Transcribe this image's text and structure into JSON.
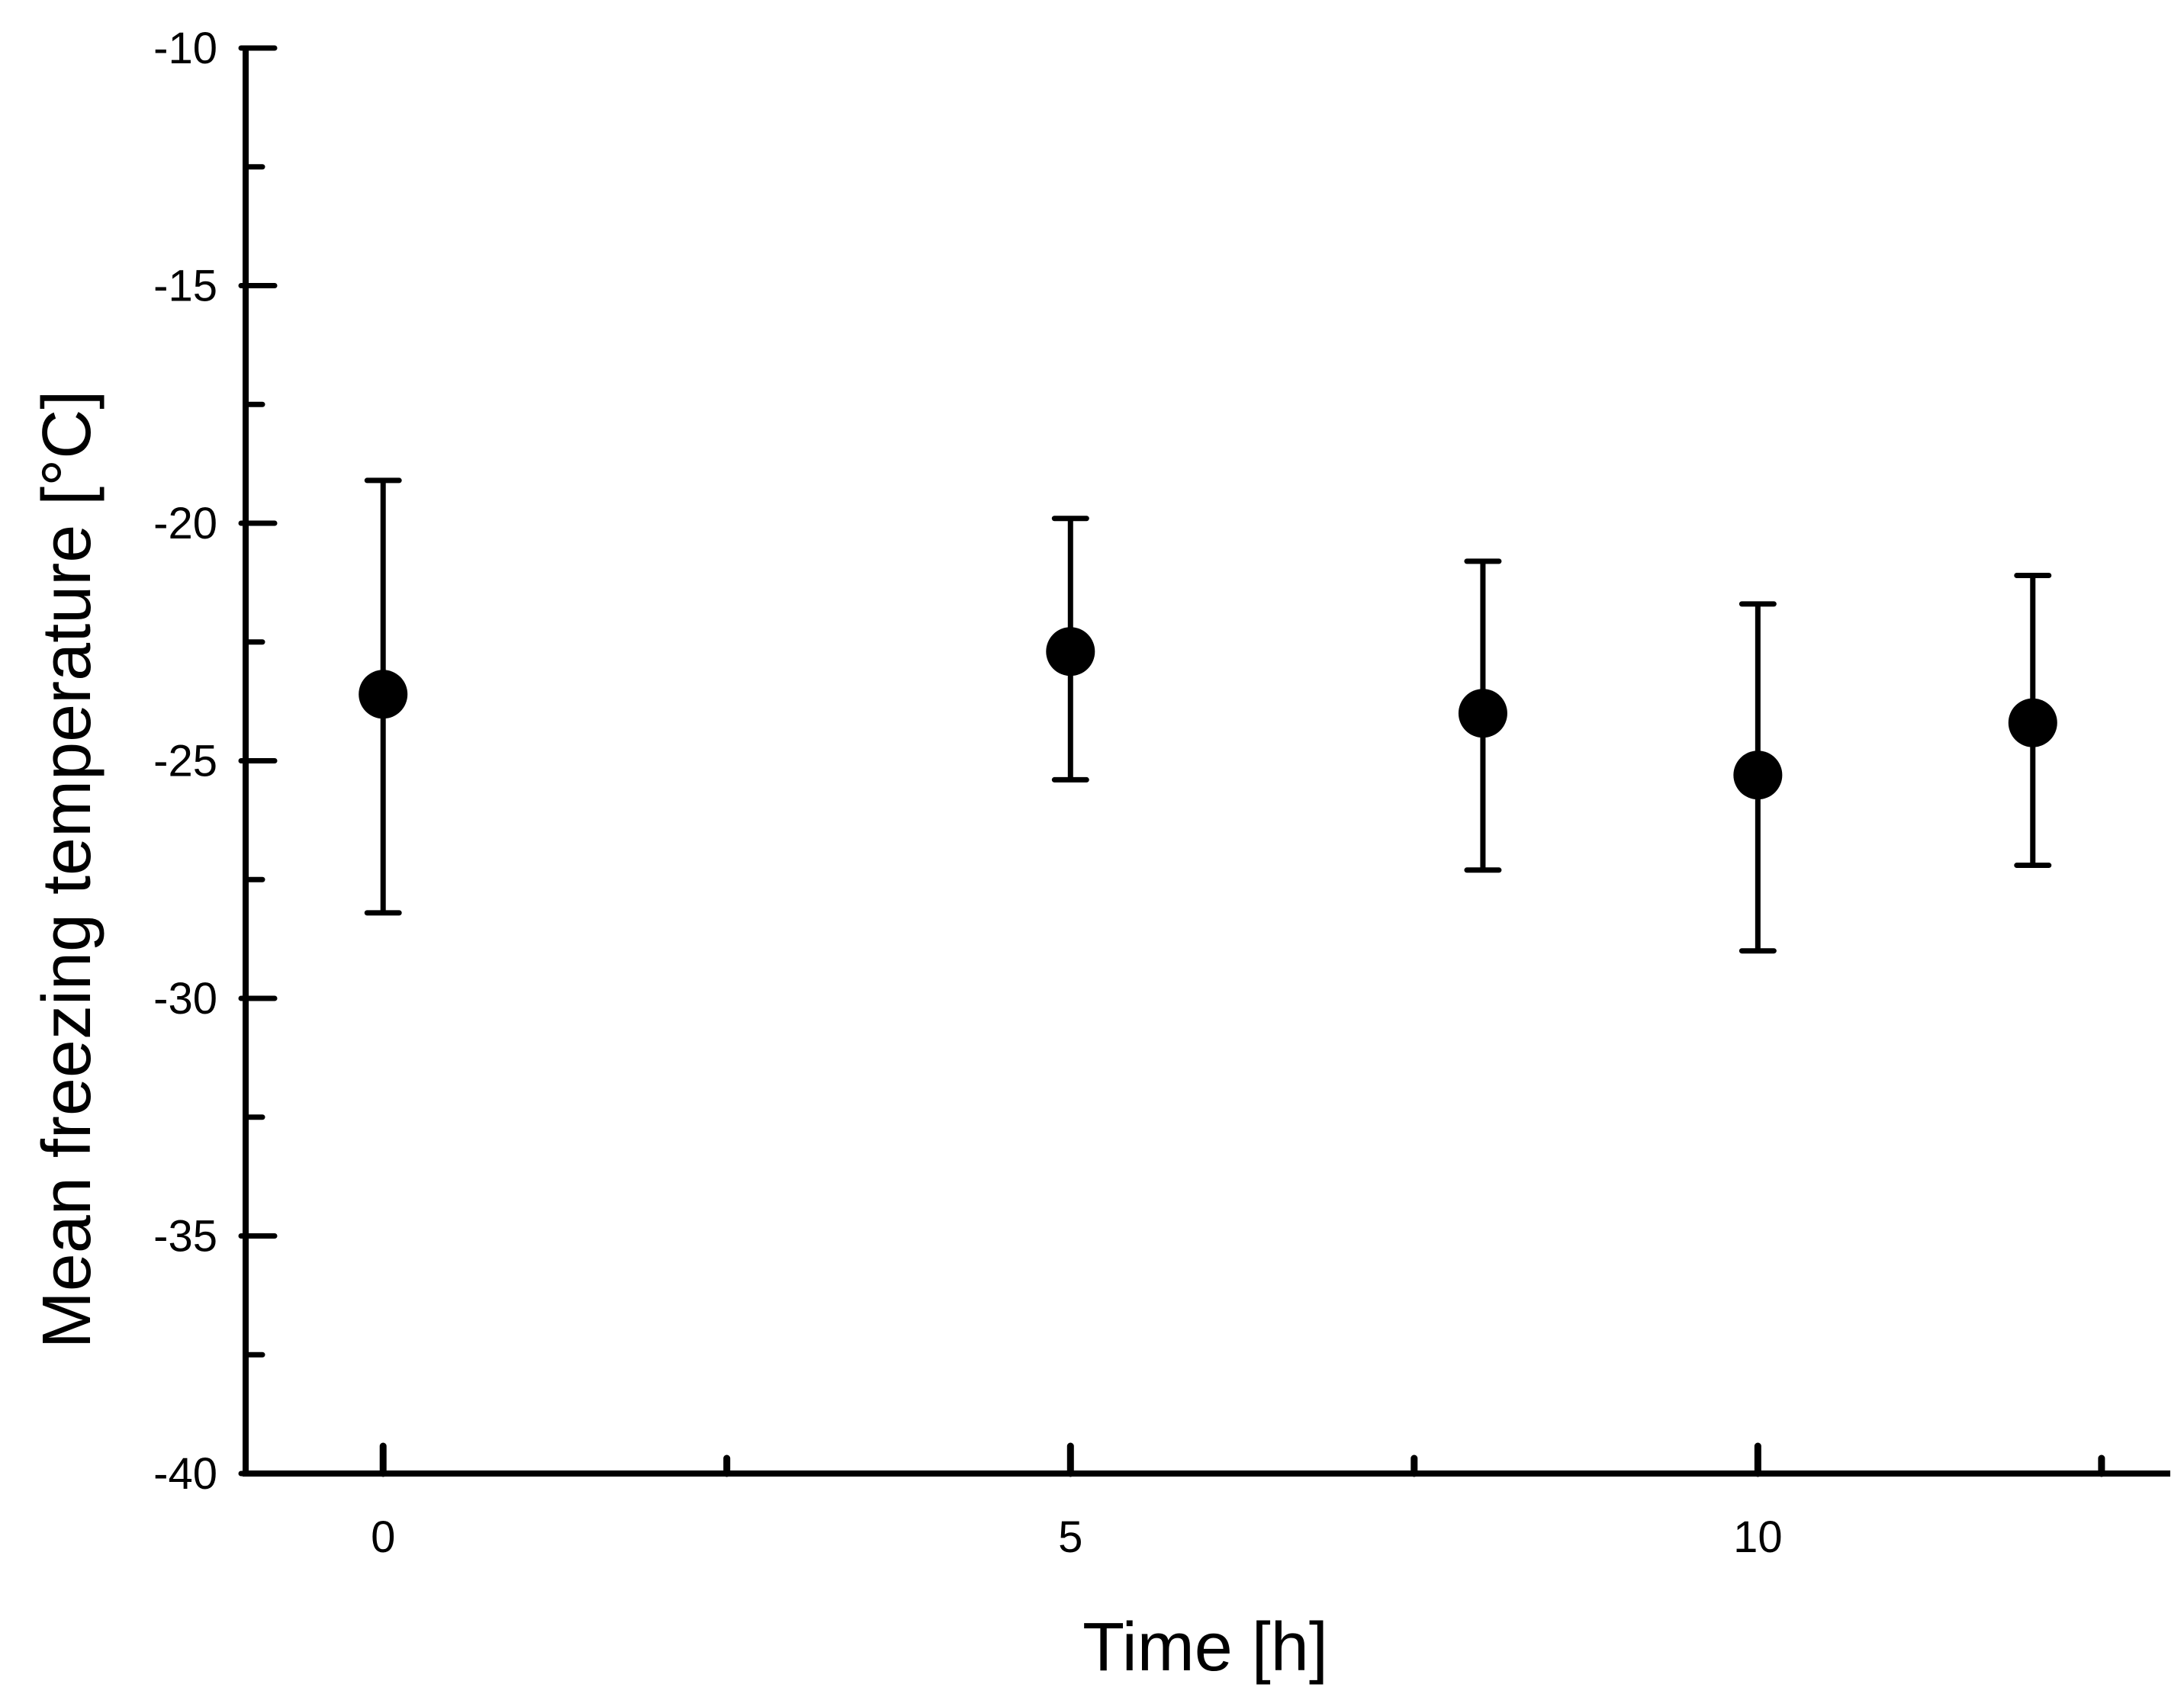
{
  "chart_data": {
    "type": "scatter",
    "title": "",
    "xlabel": "Time [h]",
    "ylabel": "Mean freezing temperature [°C]",
    "xlim": [
      -1,
      13
    ],
    "ylim": [
      -40,
      -10
    ],
    "x_ticks": [
      0,
      5,
      10
    ],
    "x_tick_labels": [
      "0",
      "5",
      "10"
    ],
    "x_minor_ticks": [
      2.5,
      7.5,
      12.5
    ],
    "y_ticks": [
      -10,
      -15,
      -20,
      -25,
      -30,
      -35,
      -40
    ],
    "y_tick_labels": [
      "-10",
      "-15",
      "-20",
      "-25",
      "-30",
      "-35",
      "-40"
    ],
    "y_minor_ticks": [
      -12.5,
      -17.5,
      -22.5,
      -27.5,
      -32.5,
      -37.5
    ],
    "grid": false,
    "legend": "none",
    "colors": {
      "marker": "#000000",
      "axis": "#000000"
    },
    "series": [
      {
        "points": [
          {
            "x": 0,
            "y": -23.6,
            "err_low": -28.2,
            "err_high": -19.1
          },
          {
            "x": 5,
            "y": -22.7,
            "err_low": -25.4,
            "err_high": -19.9
          },
          {
            "x": 8,
            "y": -24.0,
            "err_low": -27.3,
            "err_high": -20.8
          },
          {
            "x": 10,
            "y": -25.3,
            "err_low": -29.0,
            "err_high": -21.7
          },
          {
            "x": 12,
            "y": -24.2,
            "err_low": -27.2,
            "err_high": -21.1
          }
        ]
      }
    ]
  }
}
